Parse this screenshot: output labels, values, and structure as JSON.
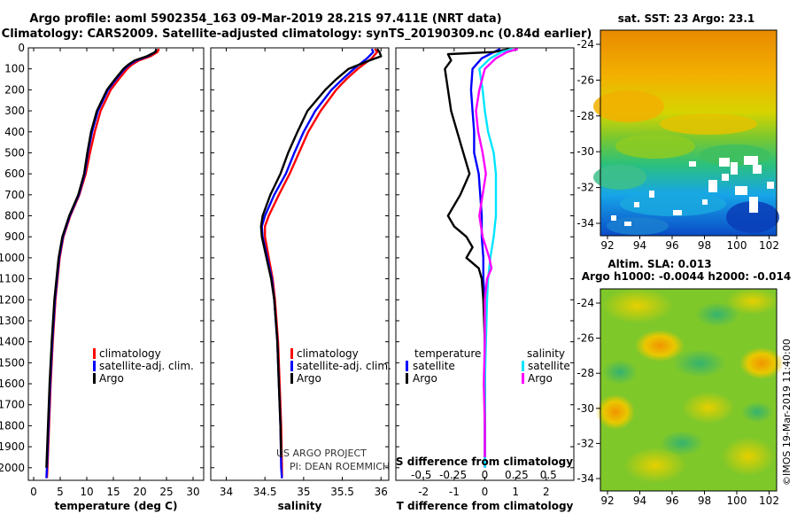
{
  "header": {
    "line1": "Argo profile: aoml 5902354_163 09-Mar-2019 28.21S 97.411E (NRT data)",
    "line2": "Climatology: CARS2009. Satellite-adjusted climatology: synTS_20190309.nc (0.84d earlier)"
  },
  "colors": {
    "climatology": "#ff0000",
    "satellite": "#0000ff",
    "argo": "#000000",
    "sat_salinity": "#00e5ff",
    "argo_salinity": "#ff00ff"
  },
  "depth_axis": {
    "ticks": [
      0,
      100,
      200,
      300,
      400,
      500,
      600,
      700,
      800,
      900,
      1000,
      1100,
      1200,
      1300,
      1400,
      1500,
      1600,
      1700,
      1800,
      1900,
      2000
    ],
    "range": [
      0,
      2060
    ]
  },
  "chart_data": [
    {
      "id": "temperature",
      "type": "line",
      "xlabel": "temperature (deg C)",
      "xlim": [
        -1,
        32
      ],
      "xticks": [
        0,
        5,
        10,
        15,
        20,
        25,
        30
      ],
      "ylim": [
        0,
        2060
      ],
      "legend": [
        "climatology",
        "satellite-adj. clim.",
        "Argo"
      ],
      "series": [
        {
          "name": "climatology",
          "color": "#ff0000",
          "depth": [
            5,
            20,
            40,
            60,
            80,
            100,
            150,
            200,
            300,
            400,
            500,
            600,
            700,
            800,
            900,
            1000,
            1200,
            1400,
            1600,
            1800,
            2000,
            2050
          ],
          "values": [
            23.6,
            23.3,
            22.0,
            19.8,
            18.5,
            17.6,
            16.0,
            14.5,
            12.6,
            11.5,
            10.6,
            9.8,
            8.6,
            6.9,
            5.6,
            4.9,
            4.1,
            3.6,
            3.2,
            2.9,
            2.6,
            2.5
          ]
        },
        {
          "name": "satellite-adj. clim.",
          "color": "#0000ff",
          "depth": [
            5,
            20,
            40,
            60,
            80,
            100,
            150,
            200,
            300,
            400,
            500,
            600,
            700,
            800,
            900,
            1000,
            1200,
            1400,
            1600,
            1800,
            2000,
            2050
          ],
          "values": [
            23.1,
            22.9,
            21.5,
            19.3,
            18.0,
            17.1,
            15.5,
            14.0,
            12.1,
            11.0,
            10.2,
            9.6,
            8.5,
            6.8,
            5.5,
            4.8,
            4.0,
            3.5,
            3.1,
            2.8,
            2.5,
            2.4
          ]
        },
        {
          "name": "Argo",
          "color": "#000000",
          "depth": [
            5,
            20,
            40,
            60,
            80,
            100,
            150,
            200,
            300,
            400,
            500,
            600,
            700,
            800,
            900,
            1000,
            1200,
            1400,
            1600,
            1800,
            2000
          ],
          "values": [
            23.1,
            22.9,
            21.3,
            19.0,
            17.8,
            16.9,
            15.3,
            13.8,
            11.9,
            10.8,
            10.1,
            9.5,
            8.4,
            6.7,
            5.4,
            4.7,
            3.9,
            3.4,
            3.0,
            2.7,
            2.4
          ]
        }
      ]
    },
    {
      "id": "salinity",
      "type": "line",
      "xlabel": "salinity",
      "xlim": [
        33.8,
        36.1
      ],
      "xticks": [
        34,
        34.5,
        35,
        35.5,
        36
      ],
      "xtick_labels": [
        "34",
        "34.5",
        "35",
        "35.5",
        "36"
      ],
      "ylim": [
        0,
        2060
      ],
      "legend": [
        "climatology",
        "satellite-adj. clim.",
        "Argo"
      ],
      "credits": [
        "US ARGO PROJECT",
        "PI: DEAN ROEMMICH"
      ],
      "series": [
        {
          "name": "climatology",
          "color": "#ff0000",
          "depth": [
            5,
            20,
            50,
            100,
            150,
            200,
            300,
            400,
            500,
            600,
            700,
            800,
            850,
            900,
            1000,
            1100,
            1200,
            1400,
            1600,
            1800,
            2000,
            2050
          ],
          "values": [
            35.92,
            35.95,
            35.88,
            35.7,
            35.55,
            35.42,
            35.22,
            35.06,
            34.94,
            34.82,
            34.68,
            34.55,
            34.5,
            34.5,
            34.55,
            34.6,
            34.63,
            34.67,
            34.69,
            34.71,
            34.72,
            34.72
          ]
        },
        {
          "name": "satellite-adj. clim.",
          "color": "#0000ff",
          "depth": [
            5,
            20,
            50,
            100,
            150,
            200,
            300,
            400,
            500,
            600,
            700,
            800,
            850,
            900,
            1000,
            1100,
            1200,
            1400,
            1600,
            1800,
            2000,
            2050
          ],
          "values": [
            35.88,
            35.9,
            35.82,
            35.65,
            35.5,
            35.36,
            35.15,
            35.0,
            34.88,
            34.77,
            34.62,
            34.5,
            34.46,
            34.47,
            34.53,
            34.59,
            34.62,
            34.66,
            34.68,
            34.7,
            34.71,
            34.72
          ]
        },
        {
          "name": "Argo",
          "color": "#000000",
          "depth": [
            5,
            20,
            40,
            60,
            100,
            150,
            200,
            300,
            400,
            500,
            600,
            700,
            800,
            850,
            900,
            1000,
            1100,
            1200,
            1400,
            1600,
            1800,
            1950
          ],
          "values": [
            35.95,
            35.98,
            36.0,
            35.85,
            35.58,
            35.42,
            35.28,
            35.05,
            34.92,
            34.8,
            34.7,
            34.57,
            34.47,
            34.45,
            34.46,
            34.52,
            34.58,
            34.62,
            34.66,
            34.68,
            34.7,
            34.71
          ]
        }
      ]
    },
    {
      "id": "difference",
      "type": "line",
      "xlabel": "T difference from climatology",
      "xlabel2": "S difference from climatology",
      "xlim": [
        -2.9,
        2.9
      ],
      "xticks": [
        -2,
        -1,
        0,
        1,
        2
      ],
      "s_xticks": [
        -0.5,
        -0.25,
        0,
        0.25,
        0.5
      ],
      "s_xtick_labels": [
        "-0.5",
        "-0.25",
        "0",
        "0.25",
        "0.5"
      ],
      "ylim": [
        0,
        2060
      ],
      "legend_temperature_title": "temperature",
      "legend_salinity_title": "salinity",
      "legend_temperature": [
        "satellite",
        "Argo"
      ],
      "legend_salinity": [
        "satellite",
        "Argo"
      ],
      "series": [
        {
          "name": "T satellite",
          "color": "#0000ff",
          "depth": [
            5,
            20,
            50,
            100,
            200,
            300,
            400,
            500,
            600,
            700,
            800,
            900,
            1000,
            1100,
            1200,
            1400,
            1600,
            1800,
            2000
          ],
          "values": [
            0.5,
            0.3,
            -0.1,
            -0.4,
            -0.45,
            -0.4,
            -0.35,
            -0.35,
            -0.2,
            -0.15,
            -0.1,
            -0.1,
            -0.05,
            -0.05,
            0,
            0,
            0,
            0,
            0
          ]
        },
        {
          "name": "T Argo",
          "color": "#000000",
          "depth": [
            5,
            20,
            30,
            60,
            100,
            200,
            300,
            400,
            500,
            600,
            700,
            800,
            850,
            900,
            950,
            1000,
            1050,
            1100,
            1200,
            1400,
            1600,
            1800,
            1950
          ],
          "values": [
            0.8,
            0.3,
            -1.2,
            -1.1,
            -1.3,
            -1.2,
            -1.1,
            -0.9,
            -0.7,
            -0.5,
            -0.8,
            -1.2,
            -1.0,
            -0.6,
            -0.4,
            -0.6,
            -0.2,
            -0.1,
            -0.05,
            0,
            0,
            0,
            0
          ]
        },
        {
          "name": "S satellite",
          "color": "#00e5ff",
          "depth": [
            5,
            20,
            50,
            100,
            200,
            300,
            400,
            500,
            600,
            700,
            800,
            900,
            1000,
            1100,
            1200,
            1400,
            1600,
            1800,
            2000
          ],
          "values": [
            0.25,
            0.15,
            0.05,
            -0.05,
            -0.02,
            0.0,
            0.03,
            0.08,
            0.1,
            0.1,
            0.1,
            0.08,
            0.05,
            0.03,
            0.02,
            0.01,
            0.0,
            0.0,
            0.0
          ]
        },
        {
          "name": "S Argo",
          "color": "#ff00ff",
          "depth": [
            5,
            20,
            50,
            100,
            200,
            300,
            400,
            500,
            600,
            700,
            800,
            900,
            1000,
            1050,
            1100,
            1200,
            1400,
            1600,
            1800,
            1950
          ],
          "values": [
            0.3,
            0.2,
            0.1,
            0.0,
            -0.05,
            -0.08,
            -0.06,
            -0.02,
            0.01,
            -0.02,
            -0.05,
            -0.02,
            0.04,
            0.06,
            0.02,
            0.0,
            0.0,
            -0.01,
            0.0,
            0.0
          ]
        }
      ]
    }
  ],
  "maps": {
    "sst": {
      "title": "sat. SST: 23 Argo: 23.1",
      "yticks": [
        "-24",
        "-26",
        "-28",
        "-30",
        "-32",
        "-34"
      ],
      "xticks": [
        "92",
        "94",
        "96",
        "98",
        "100",
        "102"
      ]
    },
    "sla": {
      "title1": "Altim. SLA: 0.013",
      "title2": "Argo h1000: -0.0044 h2000: -0.014",
      "yticks": [
        "-24",
        "-26",
        "-28",
        "-30",
        "-32",
        "-34"
      ],
      "xticks": [
        "92",
        "94",
        "96",
        "98",
        "100",
        "102"
      ]
    }
  },
  "footer": {
    "stamp": "©IMOS 19-Mar-2019 11:40:00"
  }
}
